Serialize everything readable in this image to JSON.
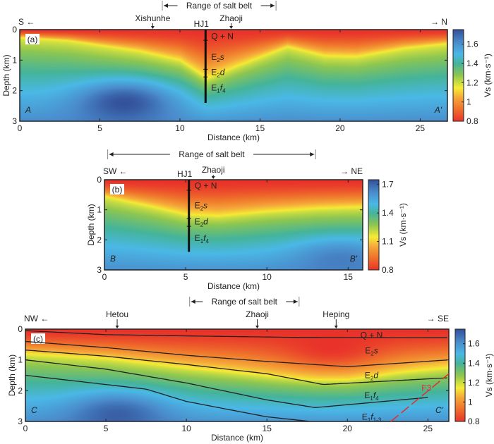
{
  "colors": {
    "stops": [
      [
        0.8,
        "#e8322a"
      ],
      [
        0.95,
        "#f07a2c"
      ],
      [
        1.05,
        "#f5a83a"
      ],
      [
        1.15,
        "#f6ec35"
      ],
      [
        1.28,
        "#8cc652"
      ],
      [
        1.4,
        "#45b49a"
      ],
      [
        1.5,
        "#4ab8e6"
      ],
      [
        1.62,
        "#4a8ccc"
      ],
      [
        1.75,
        "#34529c"
      ]
    ]
  },
  "chart_data": [
    {
      "type": "heatmap",
      "panel_label": "(a)",
      "xlabel": "Distance (km)",
      "ylabel": "Depth (km)",
      "xlim": [
        0,
        26.7
      ],
      "ylim": [
        0,
        3
      ],
      "xticks": [
        0,
        5,
        10,
        15,
        20,
        25
      ],
      "yticks": [
        0,
        1,
        2,
        3
      ],
      "colorbar": {
        "label": "Vs (km·s⁻¹)",
        "range": [
          0.8,
          1.75
        ],
        "ticks": [
          0.8,
          1,
          1.2,
          1.4,
          1.6
        ]
      },
      "dir_left": "S",
      "dir_right": "N",
      "end_left": "A",
      "end_right": "A'",
      "salt_belt": {
        "label": "Range of salt belt",
        "from": 8.9,
        "to": 16
      },
      "places": [
        {
          "name": "Xishunhe",
          "x": 8.3
        },
        {
          "name": "Zhaoji",
          "x": 13.2
        }
      ],
      "well": {
        "name": "HJ1",
        "x": 11.6,
        "bottom": 2.4,
        "ticks": [
          0.35,
          1.3,
          1.55
        ],
        "units": [
          {
            "t": "Q + N",
            "z": 0.22
          },
          {
            "t": "E",
            "s": "2",
            "i": "s",
            "z": 0.9
          },
          {
            "t": "E",
            "s": "2",
            "i": "d",
            "z": 1.4
          },
          {
            "t": "E",
            "s": "1",
            "i": "f",
            "s2": "4",
            "z": 1.9
          }
        ]
      },
      "isodepth_1_15": [
        [
          0,
          0.25
        ],
        [
          3,
          0.35
        ],
        [
          7.5,
          0.7
        ],
        [
          10,
          1.0
        ],
        [
          11.7,
          1.6
        ],
        [
          13.5,
          1.2
        ],
        [
          16.7,
          0.55
        ],
        [
          19,
          0.85
        ],
        [
          21,
          0.88
        ],
        [
          24,
          0.6
        ],
        [
          26.7,
          0.45
        ]
      ],
      "anomalies": [
        {
          "x": 6.5,
          "z": 2.4,
          "v": 1.75
        }
      ]
    },
    {
      "type": "heatmap",
      "panel_label": "(b)",
      "xlabel": "Distance (km)",
      "ylabel": "Depth (km)",
      "xlim": [
        0,
        15.9
      ],
      "ylim": [
        0,
        3
      ],
      "xticks": [
        0,
        5,
        10,
        15
      ],
      "yticks": [
        0,
        1,
        2,
        3
      ],
      "colorbar": {
        "label": "Vs (km·s⁻¹)",
        "range": [
          0.8,
          1.75
        ],
        "ticks": [
          0.8,
          1.1,
          1.4,
          1.7
        ]
      },
      "dir_left": "SW",
      "dir_right": "NE",
      "end_left": "B",
      "end_right": "B'",
      "salt_belt": {
        "label": "Range of salt belt",
        "from": 0.2,
        "to": 13
      },
      "places": [
        {
          "name": "Zhaoji",
          "x": 6.7
        }
      ],
      "well": {
        "name": "HJ1",
        "x": 5.2,
        "bottom": 2.4,
        "ticks": [
          0.35,
          1.3,
          1.55
        ],
        "units": [
          {
            "t": "Q + N",
            "z": 0.2
          },
          {
            "t": "E",
            "s": "2",
            "i": "s",
            "z": 0.85
          },
          {
            "t": "E",
            "s": "2",
            "i": "d",
            "z": 1.4
          },
          {
            "t": "E",
            "s": "1",
            "i": "f",
            "s2": "4",
            "z": 1.95
          }
        ]
      },
      "isodepth_1_15": [
        [
          0,
          0.55
        ],
        [
          3,
          0.9
        ],
        [
          5,
          1.15
        ],
        [
          7,
          1.2
        ],
        [
          10,
          1.05
        ],
        [
          13,
          0.95
        ],
        [
          15.9,
          0.9
        ]
      ],
      "anomalies": [
        {
          "x": 14.5,
          "z": 2.7,
          "v": 1.65
        }
      ]
    },
    {
      "type": "heatmap",
      "panel_label": "(c)",
      "xlabel": "Distance (km)",
      "ylabel": "Depth (km)",
      "xlim": [
        0,
        26.3
      ],
      "ylim": [
        0,
        3
      ],
      "xticks": [
        0,
        5,
        10,
        15,
        20,
        25
      ],
      "yticks": [
        0,
        1,
        2,
        3
      ],
      "colorbar": {
        "label": "Vs (km·s⁻¹)",
        "range": [
          0.8,
          1.75
        ],
        "ticks": [
          0.8,
          1,
          1.2,
          1.4,
          1.6
        ]
      },
      "dir_left": "NW",
      "dir_right": "SE",
      "end_left": "C",
      "end_right": "C'",
      "salt_belt": {
        "label": "Range of salt belt",
        "from": 10.2,
        "to": 17
      },
      "places": [
        {
          "name": "Hetou",
          "x": 5.7
        },
        {
          "name": "Zhaoji",
          "x": 14.4
        },
        {
          "name": "Heping",
          "x": 19.3
        }
      ],
      "units": [
        {
          "t": "Q + N",
          "x": 21.5,
          "z": 0.2
        },
        {
          "t": "E",
          "s": "2",
          "i": "s",
          "x": 21.5,
          "z": 0.7
        },
        {
          "t": "E",
          "s": "2",
          "i": "d",
          "x": 21.5,
          "z": 1.5
        },
        {
          "t": "E",
          "s": "1",
          "i": "f",
          "s2": "4",
          "x": 21.5,
          "z": 2.15
        },
        {
          "t": "E",
          "s": "1",
          "i": "f",
          "s2": "1-3",
          "x": 21.5,
          "z": 2.85
        }
      ],
      "horizons": [
        [
          [
            0,
            0.05
          ],
          [
            5,
            0.18
          ],
          [
            10,
            0.22
          ],
          [
            17,
            0.27
          ],
          [
            26.3,
            0.28
          ]
        ],
        [
          [
            0,
            0.4
          ],
          [
            5,
            0.6
          ],
          [
            10,
            0.85
          ],
          [
            15,
            1.05
          ],
          [
            20,
            1.22
          ],
          [
            26.3,
            1.0
          ]
        ],
        [
          [
            0,
            0.68
          ],
          [
            5,
            0.88
          ],
          [
            10,
            1.15
          ],
          [
            15,
            1.45
          ],
          [
            18.5,
            1.8
          ],
          [
            26.3,
            1.58
          ]
        ],
        [
          [
            0,
            1.0
          ],
          [
            5,
            1.3
          ],
          [
            10,
            1.75
          ],
          [
            15,
            2.3
          ],
          [
            18,
            2.55
          ],
          [
            25,
            2.22
          ]
        ],
        [
          [
            0,
            1.5
          ],
          [
            5,
            1.8
          ],
          [
            7.5,
            1.95
          ],
          [
            10,
            2.35
          ],
          [
            15,
            2.85
          ],
          [
            17.7,
            3.0
          ]
        ]
      ],
      "fault": {
        "name": "F3",
        "color": "#e0302a",
        "trace": [
          [
            22.7,
            3.0
          ],
          [
            26.3,
            1.45
          ]
        ],
        "label_at": [
          24.6,
          2.0
        ]
      },
      "isodepth_1_15": [
        [
          0,
          0.8
        ],
        [
          5,
          0.95
        ],
        [
          10,
          1.25
        ],
        [
          15,
          1.5
        ],
        [
          18,
          1.6
        ],
        [
          20,
          1.6
        ],
        [
          23,
          1.4
        ],
        [
          26.3,
          1.25
        ]
      ],
      "anomalies": [
        {
          "x": 5.7,
          "z": 2.8,
          "v": 1.72
        },
        {
          "x": 19,
          "z": 0.5,
          "v": 0.8
        }
      ]
    }
  ]
}
